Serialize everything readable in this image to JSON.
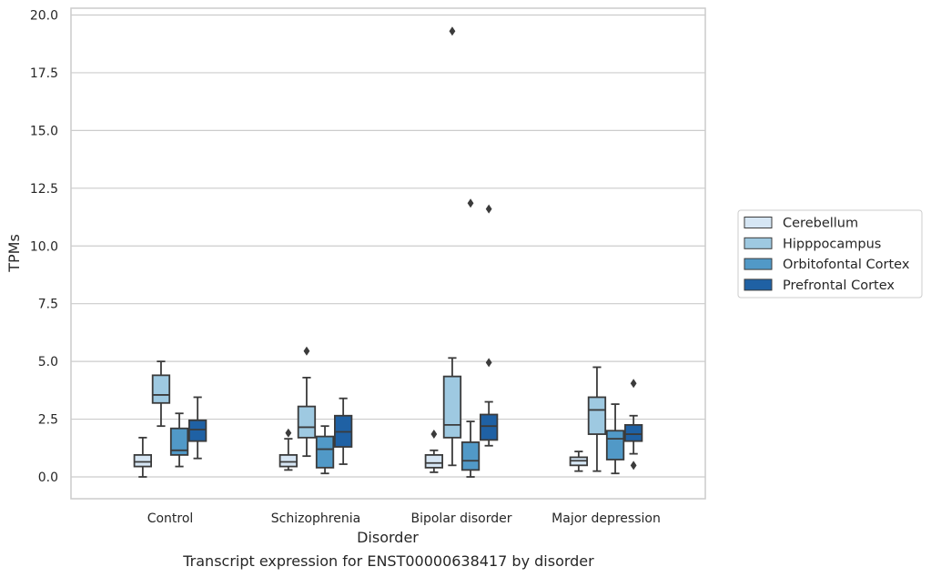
{
  "chart_data": {
    "type": "box",
    "caption": "Transcript expression for ENST00000638417 by disorder",
    "xlabel": "Disorder",
    "ylabel": "TPMs",
    "ylim": [
      -0.95,
      20.3
    ],
    "yticks": [
      "0.0",
      "2.5",
      "5.0",
      "7.5",
      "10.0",
      "12.5",
      "15.0",
      "17.5",
      "20.0"
    ],
    "grid": "horizontal",
    "legend_position": "right",
    "categories": [
      "Control",
      "Schizophrenia",
      "Bipolar disorder",
      "Major depression"
    ],
    "series": [
      {
        "name": "Cerebellum",
        "color": "#d6e6f4",
        "boxes": [
          {
            "min": 0.0,
            "q1": 0.45,
            "median": 0.65,
            "q3": 0.95,
            "max": 1.7,
            "outliers": []
          },
          {
            "min": 0.3,
            "q1": 0.45,
            "median": 0.65,
            "q3": 0.95,
            "max": 1.65,
            "outliers": [
              1.9
            ]
          },
          {
            "min": 0.2,
            "q1": 0.4,
            "median": 0.6,
            "q3": 0.95,
            "max": 1.15,
            "outliers": [
              1.85
            ]
          },
          {
            "min": 0.25,
            "q1": 0.5,
            "median": 0.7,
            "q3": 0.85,
            "max": 1.1,
            "outliers": []
          }
        ]
      },
      {
        "name": "Hipppocampus",
        "color": "#9ec9e1",
        "boxes": [
          {
            "min": 2.2,
            "q1": 3.2,
            "median": 3.55,
            "q3": 4.4,
            "max": 5.0,
            "outliers": []
          },
          {
            "min": 0.9,
            "q1": 1.7,
            "median": 2.15,
            "q3": 3.05,
            "max": 4.3,
            "outliers": [
              5.45
            ]
          },
          {
            "min": 0.5,
            "q1": 1.7,
            "median": 2.25,
            "q3": 4.35,
            "max": 5.15,
            "outliers": [
              19.3
            ]
          },
          {
            "min": 0.25,
            "q1": 1.85,
            "median": 2.9,
            "q3": 3.45,
            "max": 4.75,
            "outliers": []
          }
        ]
      },
      {
        "name": "Orbitofontal Cortex",
        "color": "#5199c7",
        "boxes": [
          {
            "min": 0.45,
            "q1": 0.95,
            "median": 1.15,
            "q3": 2.1,
            "max": 2.75,
            "outliers": []
          },
          {
            "min": 0.15,
            "q1": 0.4,
            "median": 1.2,
            "q3": 1.75,
            "max": 2.2,
            "outliers": []
          },
          {
            "min": 0.0,
            "q1": 0.3,
            "median": 0.7,
            "q3": 1.5,
            "max": 2.4,
            "outliers": [
              11.85
            ]
          },
          {
            "min": 0.15,
            "q1": 0.75,
            "median": 1.65,
            "q3": 2.0,
            "max": 3.15,
            "outliers": []
          }
        ]
      },
      {
        "name": "Prefrontal Cortex",
        "color": "#1f61a4",
        "boxes": [
          {
            "min": 0.8,
            "q1": 1.55,
            "median": 2.05,
            "q3": 2.45,
            "max": 3.45,
            "outliers": []
          },
          {
            "min": 0.55,
            "q1": 1.3,
            "median": 1.95,
            "q3": 2.65,
            "max": 3.4,
            "outliers": []
          },
          {
            "min": 1.35,
            "q1": 1.6,
            "median": 2.2,
            "q3": 2.7,
            "max": 3.25,
            "outliers": [
              11.6,
              4.95
            ]
          },
          {
            "min": 1.0,
            "q1": 1.55,
            "median": 1.85,
            "q3": 2.25,
            "max": 2.65,
            "outliers": [
              4.05,
              0.5
            ]
          }
        ]
      }
    ]
  }
}
